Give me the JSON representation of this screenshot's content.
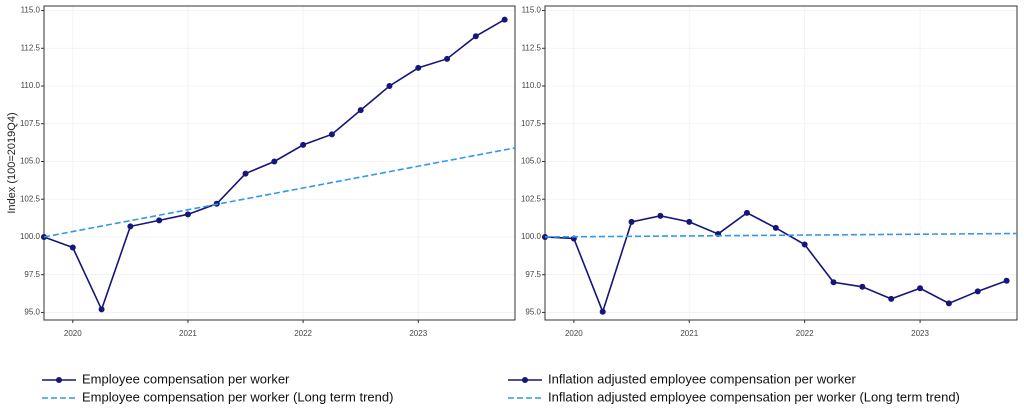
{
  "chart_data": [
    {
      "type": "line",
      "ylabel": "Index (100=2019Q4)",
      "x": [
        2019.75,
        2020,
        2020.25,
        2020.5,
        2020.75,
        2021,
        2021.25,
        2021.5,
        2021.75,
        2022,
        2022.25,
        2022.5,
        2022.75,
        2023,
        2023.25,
        2023.5,
        2023.75
      ],
      "series": [
        {
          "name": "Employee compensation per worker",
          "color": "#15157a",
          "linestyle": "solid",
          "marker": true,
          "values": [
            100.0,
            99.3,
            95.2,
            100.7,
            101.1,
            101.5,
            102.2,
            104.2,
            105.0,
            106.1,
            106.8,
            108.4,
            110.0,
            111.2,
            111.8,
            113.3,
            114.4
          ]
        },
        {
          "name": "Employee compensation per worker (Long term trend)",
          "color": "#3399e6",
          "linestyle": "dashed",
          "marker": false,
          "x": [
            2019.75,
            2023.84
          ],
          "values": [
            100.0,
            105.9
          ]
        }
      ],
      "xlim": [
        2019.75,
        2023.84
      ],
      "xticks": [
        2020,
        2021,
        2022,
        2023
      ],
      "ylim": [
        94.5,
        115.3
      ],
      "yticks": [
        {
          "value": 95,
          "label": "95.0"
        },
        97.5,
        {
          "value": 100,
          "label": "100.0"
        },
        102.5,
        {
          "value": 105,
          "label": "105.0"
        },
        107.5,
        {
          "value": 110,
          "label": "110.0"
        },
        112.5,
        {
          "value": 115,
          "label": "115.0"
        }
      ],
      "grid": true
    },
    {
      "type": "line",
      "x": [
        2019.75,
        2020,
        2020.25,
        2020.5,
        2020.75,
        2021,
        2021.25,
        2021.5,
        2021.75,
        2022,
        2022.25,
        2022.5,
        2022.75,
        2023,
        2023.25,
        2023.5,
        2023.75
      ],
      "series": [
        {
          "name": "Inflation adjusted employee compensation per worker",
          "color": "#15157a",
          "linestyle": "solid",
          "marker": true,
          "values": [
            100.0,
            99.9,
            95.05,
            101.0,
            101.4,
            101.0,
            100.2,
            101.6,
            100.6,
            99.5,
            97.0,
            96.7,
            95.9,
            96.6,
            95.6,
            96.4,
            97.1
          ]
        },
        {
          "name": "Inflation adjusted employee compensation per worker (Long term trend)",
          "color": "#3399e6",
          "linestyle": "dashed",
          "marker": false,
          "x": [
            2019.75,
            2023.84
          ],
          "values": [
            100.0,
            100.23
          ]
        }
      ],
      "xlim": [
        2019.75,
        2023.84
      ],
      "xticks": [
        2020,
        2021,
        2022,
        2023
      ],
      "ylim": [
        94.5,
        115.3
      ],
      "yticks": [
        {
          "value": 95,
          "label": "95.0"
        },
        97.5,
        {
          "value": 100,
          "label": "100.0"
        },
        102.5,
        {
          "value": 105,
          "label": "105.0"
        },
        107.5,
        {
          "value": 110,
          "label": "110.0"
        },
        112.5,
        {
          "value": 115,
          "label": "115.0"
        }
      ],
      "grid": true
    }
  ]
}
